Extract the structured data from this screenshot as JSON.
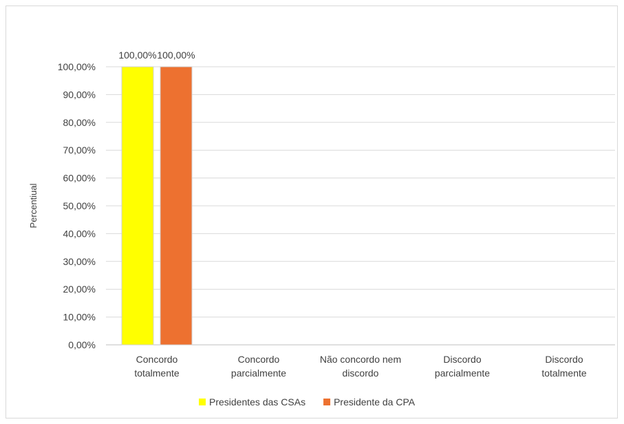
{
  "chart_data": {
    "type": "bar",
    "categories": [
      [
        "Concordo",
        "totalmente"
      ],
      [
        "Concordo",
        "parcialmente"
      ],
      [
        "Não concordo nem",
        "discordo"
      ],
      [
        "Discordo",
        "parcialmente"
      ],
      [
        "Discordo",
        "totalmente"
      ]
    ],
    "series": [
      {
        "name": "Presidentes das CSAs",
        "color": "#FFFF00",
        "values": [
          100,
          0,
          0,
          0,
          0
        ]
      },
      {
        "name": "Presidente da CPA",
        "color": "#ED7130",
        "values": [
          100,
          0,
          0,
          0,
          0
        ]
      }
    ],
    "data_labels": [
      "100,00%",
      "100,00%"
    ],
    "ylabel": "Percentiual",
    "xlabel": "",
    "ylim": [
      0,
      100
    ],
    "yticks": [
      "0,00%",
      "10,00%",
      "20,00%",
      "30,00%",
      "40,00%",
      "50,00%",
      "60,00%",
      "70,00%",
      "80,00%",
      "90,00%",
      "100,00%"
    ],
    "grid": true,
    "legend_position": "bottom"
  }
}
